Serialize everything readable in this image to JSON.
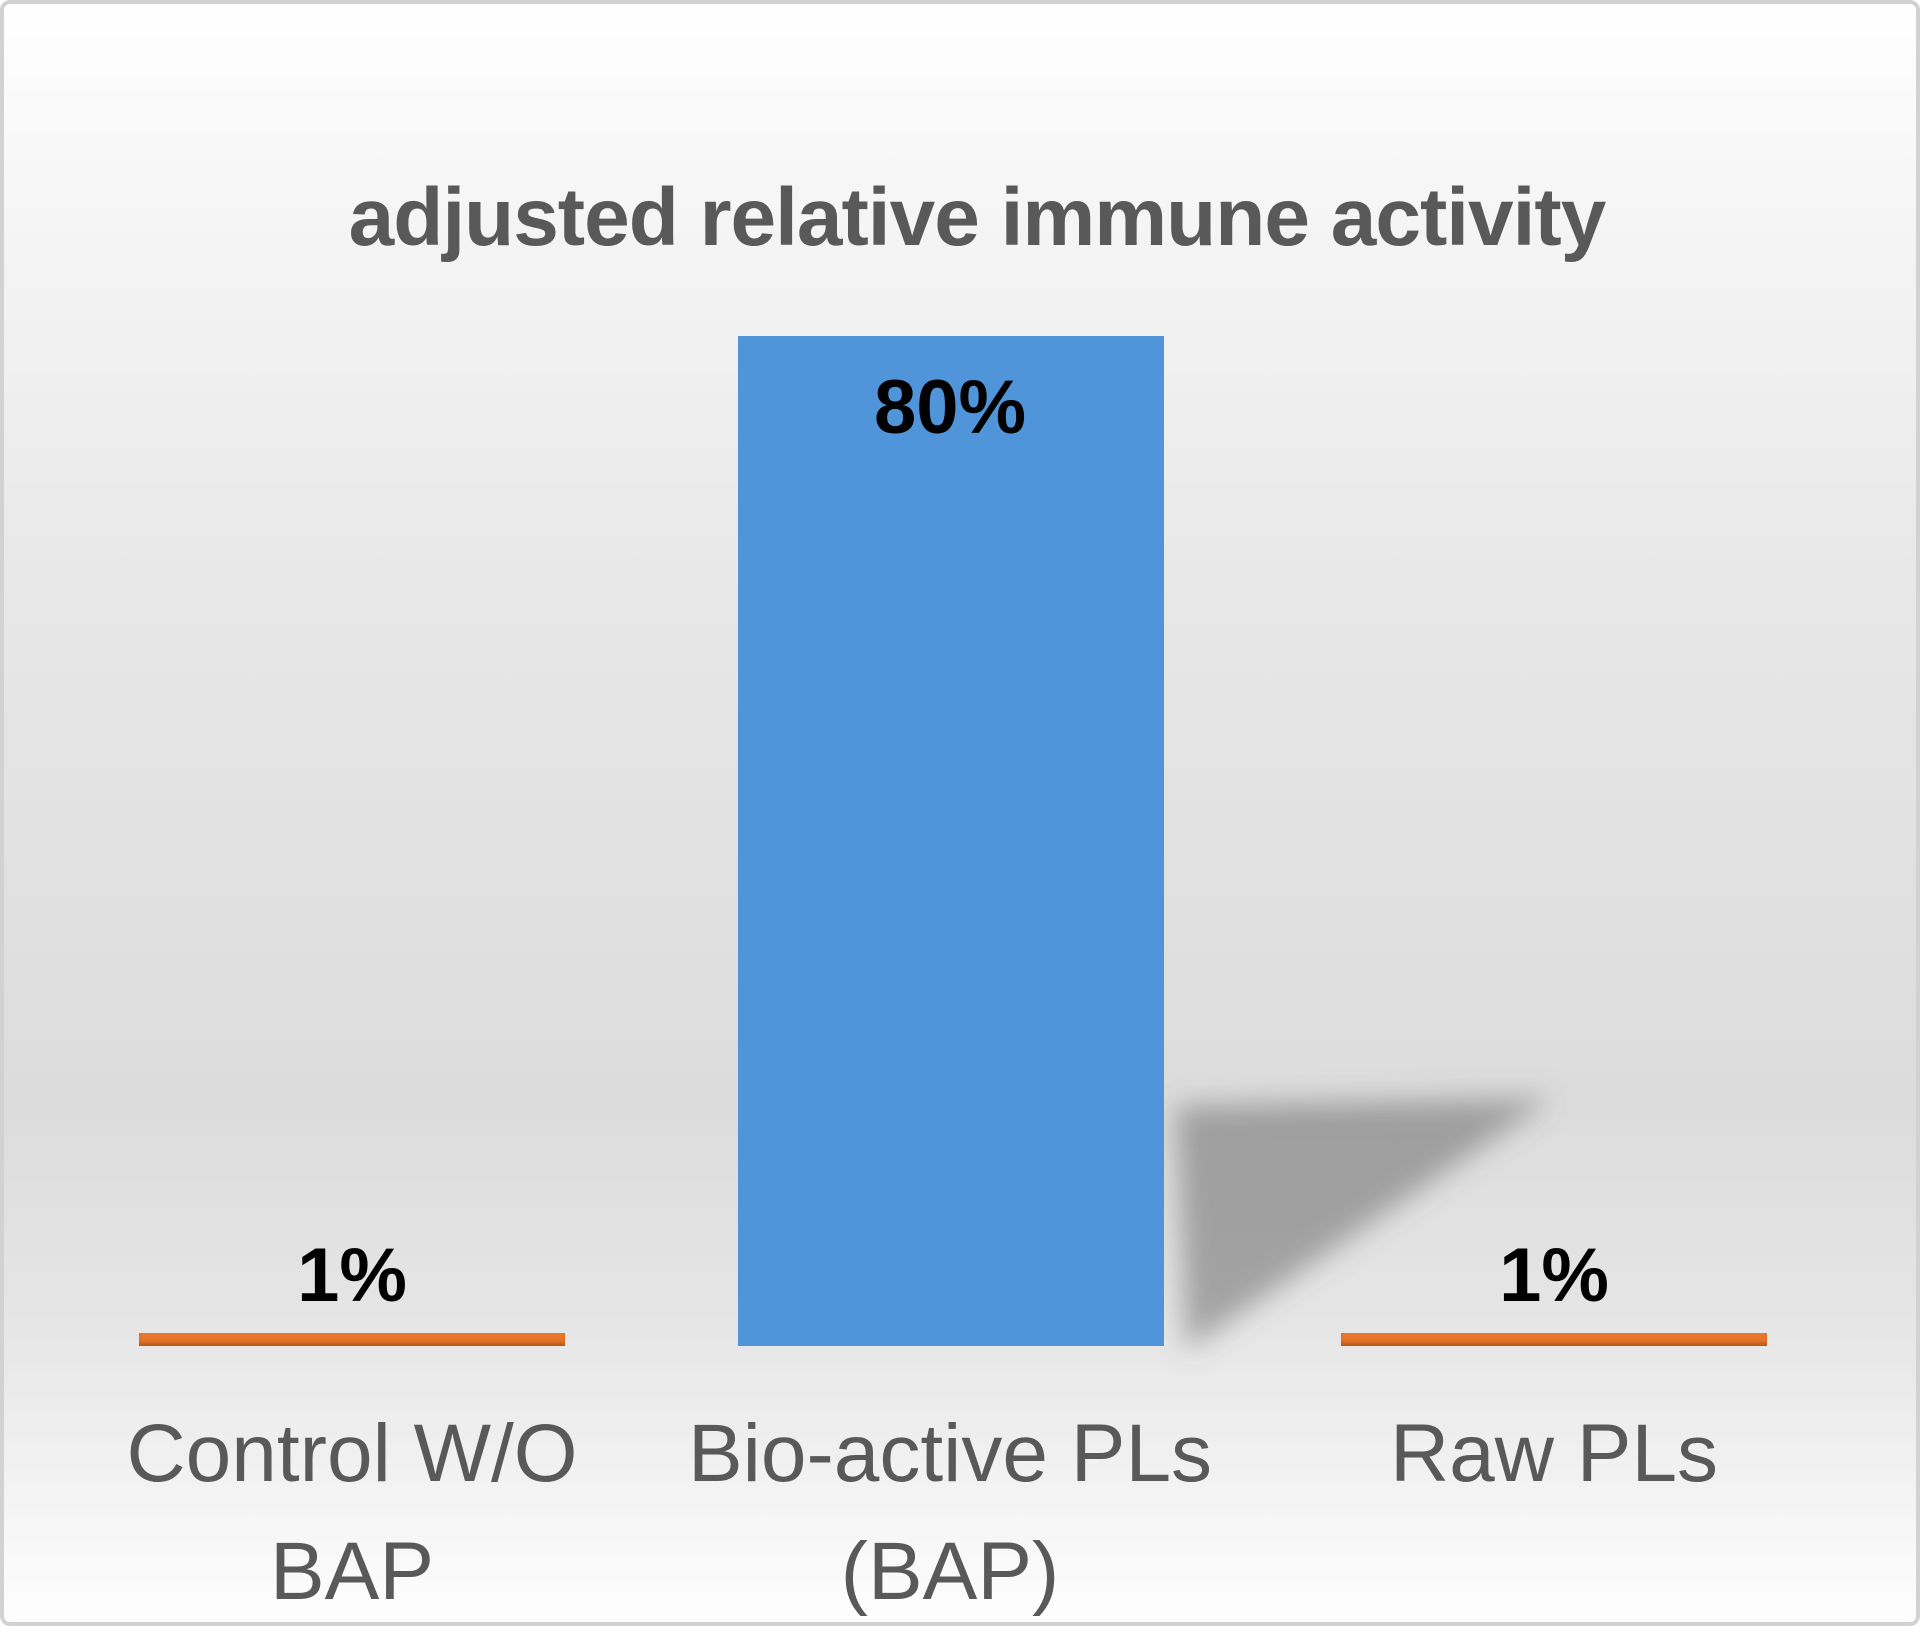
{
  "chart_data": {
    "type": "bar",
    "title": "adjusted relative immune activity",
    "categories": [
      "Control W/O BAP",
      "Bio-active PLs (BAP)",
      "Raw PLs"
    ],
    "category_lines": [
      [
        "Control W/O",
        "BAP"
      ],
      [
        "Bio-active PLs",
        "(BAP)"
      ],
      [
        "Raw PLs"
      ]
    ],
    "values": [
      1,
      80,
      1
    ],
    "data_labels": [
      "1%",
      "80%",
      "1%"
    ],
    "data_label_positions": [
      "outside-end",
      "inside-end",
      "outside-end"
    ],
    "unit": "%",
    "ylim": [
      0,
      80
    ],
    "xlabel": "",
    "ylabel": "",
    "axes_visible": false,
    "gridlines": false,
    "legend": "none",
    "bar_colors": [
      "#E8772C",
      "#5094D9",
      "#E8772C"
    ],
    "colors": {
      "title_text": "#595959",
      "category_text": "#595959",
      "value_text": "#000000",
      "blue_bar": "#5094D9",
      "orange_bar": "#E8772C",
      "orange_bar_shade": "#D25B1D",
      "shadow": "#8C8C8C",
      "background_mid": "#DCDCDC",
      "border": "#D2D2D2"
    }
  }
}
